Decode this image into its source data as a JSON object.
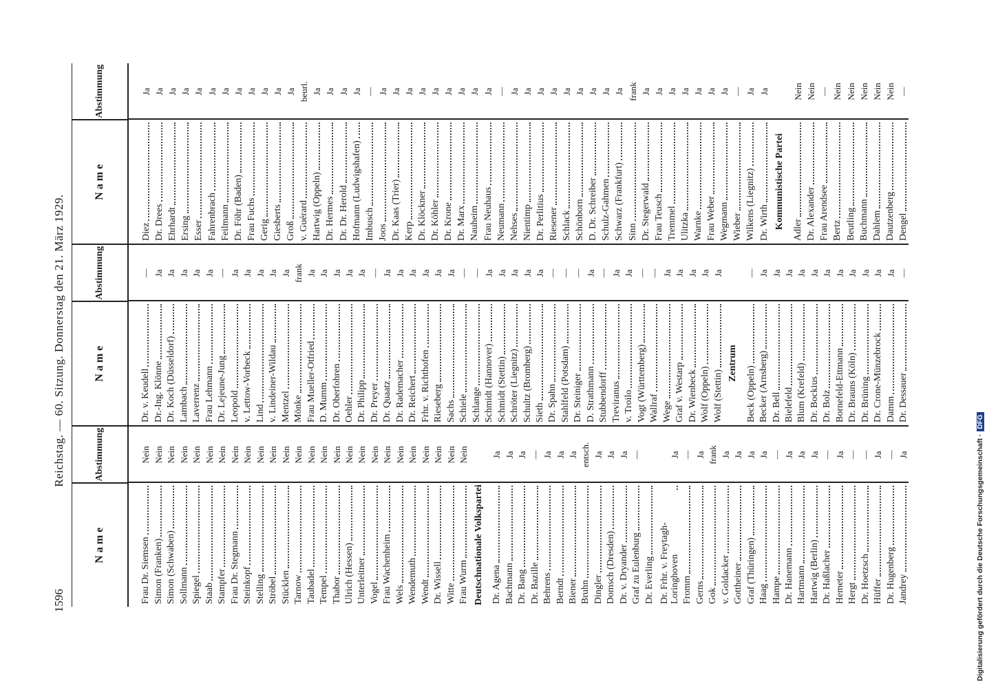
{
  "header": {
    "page_number": "1596",
    "title": "Reichstag. — 60. Sitzung. Donnerstag den 21. März 1929."
  },
  "columns": [
    {
      "header_name": "N a m e",
      "header_vote": "Abstimmung",
      "rows": [
        {
          "name": "Frau Dr. Siemsen",
          "vote": "Nein"
        },
        {
          "name": "Simon (Franken)",
          "vote": "Nein"
        },
        {
          "name": "Simon (Schwaben)",
          "vote": "Nein"
        },
        {
          "name": "Sollmann",
          "vote": "Nein"
        },
        {
          "name": "Spiegel",
          "vote": "Nein"
        },
        {
          "name": "Staab",
          "vote": "Nein"
        },
        {
          "name": "Stampfer",
          "vote": "Nein"
        },
        {
          "name": "Frau Dr. Stegmann",
          "vote": "Nein"
        },
        {
          "name": "Steinkopf",
          "vote": "Nein"
        },
        {
          "name": "Stelling",
          "vote": "Nein"
        },
        {
          "name": "Ströbel",
          "vote": "Nein"
        },
        {
          "name": "Stücklen",
          "vote": "Nein"
        },
        {
          "name": "Tarnow",
          "vote": "Nein"
        },
        {
          "name": "Taubadel",
          "vote": "Nein"
        },
        {
          "name": "Tempel",
          "vote": "Nein"
        },
        {
          "name": "Thabor",
          "vote": "Nein"
        },
        {
          "name": "Ulrich (Hessen)",
          "vote": "Nein"
        },
        {
          "name": "Unterleitner",
          "vote": "Nein"
        },
        {
          "name": "Vogel",
          "vote": "Nein"
        },
        {
          "name": "Frau Wachenheim",
          "vote": "Nein"
        },
        {
          "name": "Wels",
          "vote": "Nein"
        },
        {
          "name": "Wendemuth",
          "vote": "Nein"
        },
        {
          "name": "Wendt",
          "vote": "Nein"
        },
        {
          "name": "Dr. Wissell",
          "vote": "Nein"
        },
        {
          "name": "Witte",
          "vote": "Nein"
        },
        {
          "name": "Frau Wurm",
          "vote": "Nein"
        },
        {
          "section": "Deutschnationale Volkspartei"
        },
        {
          "name": "Dr. Agena",
          "vote": "Ja"
        },
        {
          "name": "Bachmann",
          "vote": "Ja"
        },
        {
          "name": "Dr. Bang",
          "vote": "Ja"
        },
        {
          "name": "Dr. Bazille",
          "vote": "—"
        },
        {
          "name": "Behrens",
          "vote": "Ja"
        },
        {
          "name": "Berndt",
          "vote": "Ja"
        },
        {
          "name": "Biener",
          "vote": "Ja"
        },
        {
          "name": "Bruhn",
          "vote": "entsch."
        },
        {
          "name": "Dingler",
          "vote": "Ja"
        },
        {
          "name": "Domsch (Dresden)",
          "vote": "Ja"
        },
        {
          "name": "Dr. v. Dryander",
          "vote": "Ja"
        },
        {
          "name": "Graf zu Eulenburg",
          "vote": "—"
        },
        {
          "name": "Dr. Everling"
        },
        {
          "name": "Dr. Frhr. v. Freytagh-Loringhoven",
          "vote": "Ja"
        },
        {
          "name": "Fromm",
          "vote": "—"
        },
        {
          "name": "Gerns",
          "vote": "Ja"
        },
        {
          "name": "Gok",
          "vote": "frank"
        },
        {
          "name": "v. Goldacker",
          "vote": "Ja"
        },
        {
          "name": "Gottheiner",
          "vote": "Ja"
        },
        {
          "name": "Graf (Thüringen)",
          "vote": "Ja"
        },
        {
          "name": "Haag",
          "vote": "Ja"
        },
        {
          "name": "Hampe",
          "vote": "—"
        },
        {
          "name": "Dr. Hanemann",
          "vote": "Ja"
        },
        {
          "name": "Hartmann",
          "vote": "Ja"
        },
        {
          "name": "Hartwig (Berlin)",
          "vote": "Ja"
        },
        {
          "name": "Dr. Haßlacher",
          "vote": "—"
        },
        {
          "name": "Hemeter",
          "vote": "Ja"
        },
        {
          "name": "Hergt",
          "vote": "—"
        },
        {
          "name": "Dr. Hoetzsch",
          "vote": "—"
        },
        {
          "name": "Hüffer",
          "vote": "Ja"
        },
        {
          "name": "Dr. Hugenberg",
          "vote": "—"
        },
        {
          "name": "Jandrey",
          "vote": "Ja"
        }
      ]
    },
    {
      "header_name": "N a m e",
      "header_vote": "Abstimmung",
      "rows": [
        {
          "name": "Dr. v. Keudell",
          "vote": "—"
        },
        {
          "name": "Dr.-Ing. Klönne",
          "vote": "Ja"
        },
        {
          "name": "Dr. Koch (Düsseldorf)",
          "vote": "Ja"
        },
        {
          "name": "Lambach",
          "vote": "Ja"
        },
        {
          "name": "Laverrenz",
          "vote": "Ja"
        },
        {
          "name": "Frau Lehmann",
          "vote": "Ja"
        },
        {
          "name": "Dr. Lejeune-Jung",
          "vote": "—"
        },
        {
          "name": "Leopold",
          "vote": "Ja"
        },
        {
          "name": "v. Lettow-Vorbeck",
          "vote": "Ja"
        },
        {
          "name": "Lind",
          "vote": "Ja"
        },
        {
          "name": "v. Lindeiner-Wildau",
          "vote": "Ja"
        },
        {
          "name": "Mentzel",
          "vote": "Ja"
        },
        {
          "name": "Mönke",
          "vote": "frank"
        },
        {
          "name": "Frau Mueller-Otfried",
          "vote": "Ja"
        },
        {
          "name": "D. Mumm",
          "vote": "Ja"
        },
        {
          "name": "Dr. Oberfohren",
          "vote": "Ja"
        },
        {
          "name": "Oehler",
          "vote": "Ja"
        },
        {
          "name": "Dr. Philipp",
          "vote": "Ja"
        },
        {
          "name": "Dr. Preyer",
          "vote": "—"
        },
        {
          "name": "Dr. Quaatz",
          "vote": "Ja"
        },
        {
          "name": "Dr. Rademacher",
          "vote": "Ja"
        },
        {
          "name": "Dr. Reichert",
          "vote": "Ja"
        },
        {
          "name": "Frhr. v. Richthofen",
          "vote": "Ja"
        },
        {
          "name": "Rieseberg",
          "vote": "Ja"
        },
        {
          "name": "Sachs",
          "vote": "Ja"
        },
        {
          "name": "Schiele",
          "vote": "—"
        },
        {
          "name": "Schlange",
          "vote": "—"
        },
        {
          "name": "Schmidt (Hannover)",
          "vote": "Ja"
        },
        {
          "name": "Schmidt (Stettin)",
          "vote": "Ja"
        },
        {
          "name": "Schröter (Liegnitz)",
          "vote": "Ja"
        },
        {
          "name": "Schultz (Bromberg)",
          "vote": "Ja"
        },
        {
          "name": "Sieth",
          "vote": "Ja"
        },
        {
          "name": "Dr. Spahn",
          "vote": "—"
        },
        {
          "name": "Stahlfeld (Potsdam)",
          "vote": "—"
        },
        {
          "name": "Dr. Steiniger",
          "vote": "—"
        },
        {
          "name": "D. Strathmann",
          "vote": "Ja"
        },
        {
          "name": "Stubbendorff",
          "vote": "—"
        },
        {
          "name": "Treviranus",
          "vote": "Ja"
        },
        {
          "name": "v. Troilo",
          "vote": "Ja"
        },
        {
          "name": "Vogt (Württemberg)",
          "vote": "—"
        },
        {
          "name": "Wallraf",
          "vote": "—"
        },
        {
          "name": "Wege",
          "vote": "Ja"
        },
        {
          "name": "Graf v. Westarp",
          "vote": "Ja"
        },
        {
          "name": "Dr. Wienbeck",
          "vote": "Ja"
        },
        {
          "name": "Wolf (Oppeln)",
          "vote": "Ja"
        },
        {
          "name": "Wolf (Stettin)",
          "vote": "Ja"
        },
        {
          "section": "Zentrum"
        },
        {
          "name": "Beck (Oppeln)",
          "vote": "—"
        },
        {
          "name": "Becker (Arnsberg)",
          "vote": "Ja"
        },
        {
          "name": "Dr. Bell",
          "vote": "Ja"
        },
        {
          "name": "Bielefeld",
          "vote": "Ja"
        },
        {
          "name": "Blum (Krefeld)",
          "vote": "Ja"
        },
        {
          "name": "Dr. Bockius",
          "vote": "Ja"
        },
        {
          "name": "Dr. Bolz",
          "vote": "Ja"
        },
        {
          "name": "Bornefeld-Ettmann",
          "vote": "Ja"
        },
        {
          "name": "Dr. Brauns (Köln)",
          "vote": "Ja"
        },
        {
          "name": "Dr. Brüning",
          "vote": "Ja"
        },
        {
          "name": "Dr. Crone-Münzebrock",
          "vote": "Ja"
        },
        {
          "name": "Damm",
          "vote": "Ja"
        },
        {
          "name": "Dr. Dessauer",
          "vote": "—"
        }
      ]
    },
    {
      "header_name": "N a m e",
      "header_vote": "Abstimmung",
      "rows": [
        {
          "name": "Diez",
          "vote": "Ja"
        },
        {
          "name": "Dr. Drees",
          "vote": "Ja"
        },
        {
          "name": "Ehrhardt",
          "vote": "Ja"
        },
        {
          "name": "Ersing",
          "vote": "Ja"
        },
        {
          "name": "Esser",
          "vote": "Ja"
        },
        {
          "name": "Fahrenbrach",
          "vote": "Ja"
        },
        {
          "name": "Feilmann",
          "vote": "Ja"
        },
        {
          "name": "Dr. Föhr (Baden)",
          "vote": "Ja"
        },
        {
          "name": "Frau Fuchs",
          "vote": "Ja"
        },
        {
          "name": "Gerig",
          "vote": "Ja"
        },
        {
          "name": "Giesberts",
          "vote": "Ja"
        },
        {
          "name": "Groß",
          "vote": "Ja"
        },
        {
          "name": "v. Guérard",
          "vote": "beurl."
        },
        {
          "name": "Hartwig (Oppeln)",
          "vote": "Ja"
        },
        {
          "name": "Dr. Hermes",
          "vote": "Ja"
        },
        {
          "name": "Dr. Dr. Herold",
          "vote": "Ja"
        },
        {
          "name": "Hofmann (Ludwigshafen)",
          "vote": "Ja"
        },
        {
          "name": "Imbusch",
          "vote": "—"
        },
        {
          "name": "Joos",
          "vote": "Ja"
        },
        {
          "name": "Dr. Kaas (Trier)",
          "vote": "Ja"
        },
        {
          "name": "Kerp",
          "vote": "Ja"
        },
        {
          "name": "Dr. Klöckner",
          "vote": "Ja"
        },
        {
          "name": "Dr. Köhler",
          "vote": "Ja"
        },
        {
          "name": "Dr. Krone",
          "vote": "Ja"
        },
        {
          "name": "Dr. Marx",
          "vote": "Ja"
        },
        {
          "name": "Nauheim",
          "vote": "Ja"
        },
        {
          "name": "Frau Neuhaus",
          "vote": "Ja"
        },
        {
          "name": "Neumann",
          "vote": "—"
        },
        {
          "name": "Nehses",
          "vote": "Ja"
        },
        {
          "name": "Nientimp",
          "vote": "Ja"
        },
        {
          "name": "Dr. Perlitius",
          "vote": "Ja"
        },
        {
          "name": "Riesener",
          "vote": "Ja"
        },
        {
          "name": "Schlack",
          "vote": "Ja"
        },
        {
          "name": "Schönborn",
          "vote": "Ja"
        },
        {
          "name": "D. Dr. Schreiber",
          "vote": "Ja"
        },
        {
          "name": "Schulz-Gahmen",
          "vote": "Ja"
        },
        {
          "name": "Schwarz (Frankfurt)",
          "vote": "Ja"
        },
        {
          "name": "Sinn",
          "vote": "frank"
        },
        {
          "name": "Dr. Stegerwald",
          "vote": "Ja"
        },
        {
          "name": "Frau Teusch",
          "vote": "Ja"
        },
        {
          "name": "Tremmel",
          "vote": "Ja"
        },
        {
          "name": "Ulitzka",
          "vote": "Ja"
        },
        {
          "name": "Warnke",
          "vote": "Ja"
        },
        {
          "name": "Frau Weber",
          "vote": "Ja"
        },
        {
          "name": "Wegmann",
          "vote": "Ja"
        },
        {
          "name": "Wieber",
          "vote": "—"
        },
        {
          "name": "Wilkens (Liegnitz)",
          "vote": "Ja"
        },
        {
          "name": "Dr. Wirth",
          "vote": "Ja"
        },
        {
          "section": "Kommunistische Partei"
        },
        {
          "name": "Adler",
          "vote": "Nein"
        },
        {
          "name": "Dr. Alexander",
          "vote": "Nein"
        },
        {
          "name": "Frau Arendsee",
          "vote": "—"
        },
        {
          "name": "Bertz",
          "vote": "Nein"
        },
        {
          "name": "Beutling",
          "vote": "Nein"
        },
        {
          "name": "Buchmann",
          "vote": "Nein"
        },
        {
          "name": "Dahlem",
          "vote": "Nein"
        },
        {
          "name": "Dautzenberg",
          "vote": "Nein"
        },
        {
          "name": "Dengel",
          "vote": "—"
        }
      ]
    }
  ],
  "side_note": {
    "text": "Digitalisierung gefördert durch die Deutsche Forschungsgemeinschaft ·",
    "logo": "DFG"
  }
}
